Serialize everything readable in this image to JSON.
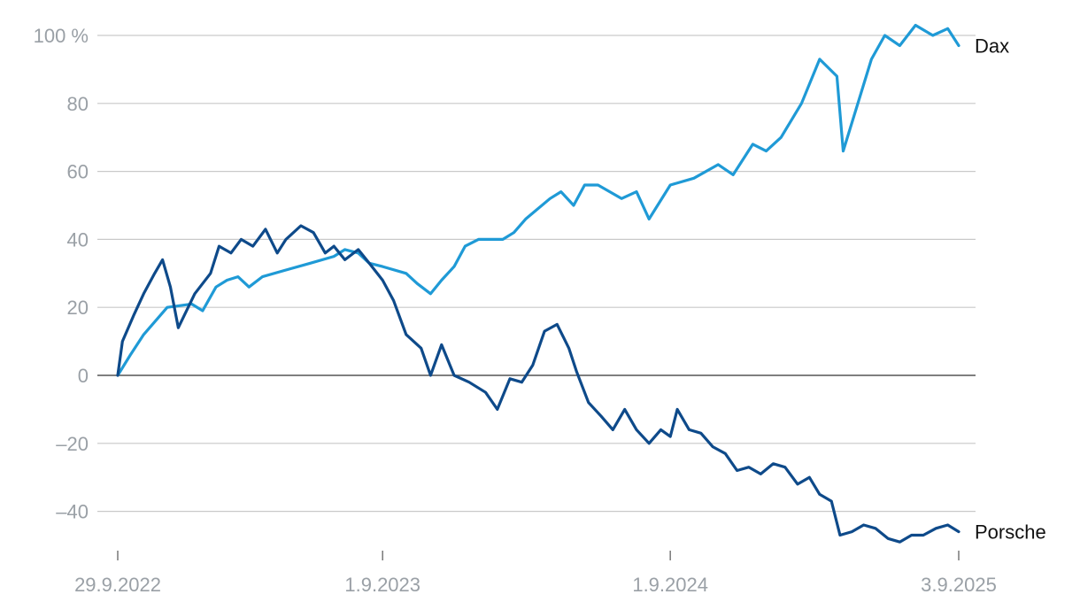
{
  "chart_data": {
    "type": "line",
    "unit_suffix": "%",
    "ylim": [
      -52,
      105
    ],
    "y_ticks": [
      {
        "value": 100,
        "label": "100 %"
      },
      {
        "value": 80,
        "label": "80"
      },
      {
        "value": 60,
        "label": "60"
      },
      {
        "value": 40,
        "label": "40"
      },
      {
        "value": 20,
        "label": "20"
      },
      {
        "value": 0,
        "label": "0"
      },
      {
        "value": -20,
        "label": "–20"
      },
      {
        "value": -40,
        "label": "–40"
      }
    ],
    "x_range": [
      "2022-09-29",
      "2025-09-03"
    ],
    "x_ticks": [
      {
        "date": "2022-09-29",
        "label": "29.9.2022"
      },
      {
        "date": "2023-09-01",
        "label": "1.9.2023"
      },
      {
        "date": "2024-09-01",
        "label": "1.9.2024"
      },
      {
        "date": "2025-09-03",
        "label": "3.9.2025"
      }
    ],
    "grid": true,
    "series": [
      {
        "name": "Dax",
        "color": "#1f9ad6",
        "points": [
          [
            "2022-09-29",
            0
          ],
          [
            "2022-10-15",
            6
          ],
          [
            "2022-11-01",
            12
          ],
          [
            "2022-12-01",
            20
          ],
          [
            "2023-01-01",
            21
          ],
          [
            "2023-01-15",
            19
          ],
          [
            "2023-02-01",
            26
          ],
          [
            "2023-02-15",
            28
          ],
          [
            "2023-03-01",
            29
          ],
          [
            "2023-03-15",
            26
          ],
          [
            "2023-04-01",
            29
          ],
          [
            "2023-05-01",
            31
          ],
          [
            "2023-06-01",
            33
          ],
          [
            "2023-07-01",
            35
          ],
          [
            "2023-07-15",
            37
          ],
          [
            "2023-08-01",
            36
          ],
          [
            "2023-08-15",
            33
          ],
          [
            "2023-09-01",
            32
          ],
          [
            "2023-10-01",
            30
          ],
          [
            "2023-10-15",
            27
          ],
          [
            "2023-11-01",
            24
          ],
          [
            "2023-11-15",
            28
          ],
          [
            "2023-12-01",
            32
          ],
          [
            "2023-12-15",
            38
          ],
          [
            "2024-01-01",
            40
          ],
          [
            "2024-02-01",
            40
          ],
          [
            "2024-02-15",
            42
          ],
          [
            "2024-03-01",
            46
          ],
          [
            "2024-04-01",
            52
          ],
          [
            "2024-04-15",
            54
          ],
          [
            "2024-05-01",
            50
          ],
          [
            "2024-05-15",
            56
          ],
          [
            "2024-06-01",
            56
          ],
          [
            "2024-07-01",
            52
          ],
          [
            "2024-07-20",
            54
          ],
          [
            "2024-08-05",
            46
          ],
          [
            "2024-09-01",
            56
          ],
          [
            "2024-10-01",
            58
          ],
          [
            "2024-11-01",
            62
          ],
          [
            "2024-11-20",
            59
          ],
          [
            "2024-12-15",
            68
          ],
          [
            "2025-01-01",
            66
          ],
          [
            "2025-01-20",
            70
          ],
          [
            "2025-02-15",
            80
          ],
          [
            "2025-03-10",
            93
          ],
          [
            "2025-04-01",
            88
          ],
          [
            "2025-04-09",
            66
          ],
          [
            "2025-04-25",
            78
          ],
          [
            "2025-05-15",
            93
          ],
          [
            "2025-06-01",
            100
          ],
          [
            "2025-06-20",
            97
          ],
          [
            "2025-07-10",
            103
          ],
          [
            "2025-08-01",
            100
          ],
          [
            "2025-08-20",
            102
          ],
          [
            "2025-09-03",
            97
          ]
        ]
      },
      {
        "name": "Porsche",
        "color": "#0e4a8a",
        "points": [
          [
            "2022-09-29",
            0
          ],
          [
            "2022-10-05",
            10
          ],
          [
            "2022-10-20",
            18
          ],
          [
            "2022-11-01",
            24
          ],
          [
            "2022-11-15",
            30
          ],
          [
            "2022-11-25",
            34
          ],
          [
            "2022-12-05",
            26
          ],
          [
            "2022-12-15",
            14
          ],
          [
            "2023-01-05",
            24
          ],
          [
            "2023-01-25",
            30
          ],
          [
            "2023-02-05",
            38
          ],
          [
            "2023-02-20",
            36
          ],
          [
            "2023-03-05",
            40
          ],
          [
            "2023-03-20",
            38
          ],
          [
            "2023-04-05",
            43
          ],
          [
            "2023-04-20",
            36
          ],
          [
            "2023-05-01",
            40
          ],
          [
            "2023-05-20",
            44
          ],
          [
            "2023-06-05",
            42
          ],
          [
            "2023-06-20",
            36
          ],
          [
            "2023-07-01",
            38
          ],
          [
            "2023-07-15",
            34
          ],
          [
            "2023-08-01",
            37
          ],
          [
            "2023-08-15",
            33
          ],
          [
            "2023-09-01",
            28
          ],
          [
            "2023-09-15",
            22
          ],
          [
            "2023-10-01",
            12
          ],
          [
            "2023-10-20",
            8
          ],
          [
            "2023-11-01",
            0
          ],
          [
            "2023-11-15",
            9
          ],
          [
            "2023-12-01",
            0
          ],
          [
            "2023-12-20",
            -2
          ],
          [
            "2024-01-10",
            -5
          ],
          [
            "2024-01-25",
            -10
          ],
          [
            "2024-02-10",
            -1
          ],
          [
            "2024-02-25",
            -2
          ],
          [
            "2024-03-10",
            3
          ],
          [
            "2024-03-25",
            13
          ],
          [
            "2024-04-10",
            15
          ],
          [
            "2024-04-25",
            8
          ],
          [
            "2024-05-05",
            1
          ],
          [
            "2024-05-20",
            -8
          ],
          [
            "2024-06-05",
            -12
          ],
          [
            "2024-06-20",
            -16
          ],
          [
            "2024-07-05",
            -10
          ],
          [
            "2024-07-20",
            -16
          ],
          [
            "2024-08-05",
            -20
          ],
          [
            "2024-08-20",
            -16
          ],
          [
            "2024-09-01",
            -18
          ],
          [
            "2024-09-10",
            -10
          ],
          [
            "2024-09-25",
            -16
          ],
          [
            "2024-10-10",
            -17
          ],
          [
            "2024-10-25",
            -21
          ],
          [
            "2024-11-10",
            -23
          ],
          [
            "2024-11-25",
            -28
          ],
          [
            "2024-12-10",
            -27
          ],
          [
            "2024-12-25",
            -29
          ],
          [
            "2025-01-10",
            -26
          ],
          [
            "2025-01-25",
            -27
          ],
          [
            "2025-02-10",
            -32
          ],
          [
            "2025-02-25",
            -30
          ],
          [
            "2025-03-10",
            -35
          ],
          [
            "2025-03-25",
            -37
          ],
          [
            "2025-04-05",
            -47
          ],
          [
            "2025-04-20",
            -46
          ],
          [
            "2025-05-05",
            -44
          ],
          [
            "2025-05-20",
            -45
          ],
          [
            "2025-06-05",
            -48
          ],
          [
            "2025-06-20",
            -49
          ],
          [
            "2025-07-05",
            -47
          ],
          [
            "2025-07-20",
            -47
          ],
          [
            "2025-08-05",
            -45
          ],
          [
            "2025-08-20",
            -44
          ],
          [
            "2025-09-03",
            -46
          ]
        ]
      }
    ]
  }
}
